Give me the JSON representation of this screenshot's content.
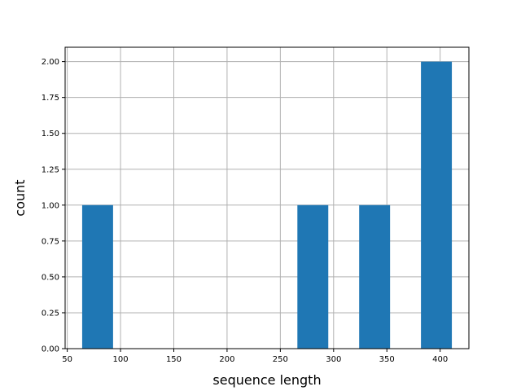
{
  "chart_data": {
    "type": "bar",
    "title": "",
    "xlabel": "sequence length",
    "ylabel": "count",
    "xlim": [
      48,
      427
    ],
    "ylim": [
      0,
      2.1
    ],
    "grid": true,
    "bar_color": "#1f77b4",
    "grid_color": "#b0b0b0",
    "bins": [
      {
        "x0": 64,
        "x1": 93,
        "count": 1
      },
      {
        "x0": 266,
        "x1": 295,
        "count": 1
      },
      {
        "x0": 324,
        "x1": 353,
        "count": 1
      },
      {
        "x0": 382,
        "x1": 411,
        "count": 2
      }
    ],
    "xticks": [
      50,
      100,
      150,
      200,
      250,
      300,
      350,
      400
    ],
    "xtick_labels": [
      "50",
      "100",
      "150",
      "200",
      "250",
      "300",
      "350",
      "400"
    ],
    "yticks": [
      0,
      0.25,
      0.5,
      0.75,
      1.0,
      1.25,
      1.5,
      1.75,
      2.0
    ],
    "ytick_labels": [
      "0.00",
      "0.25",
      "0.50",
      "0.75",
      "1.00",
      "1.25",
      "1.50",
      "1.75",
      "2.00"
    ]
  }
}
